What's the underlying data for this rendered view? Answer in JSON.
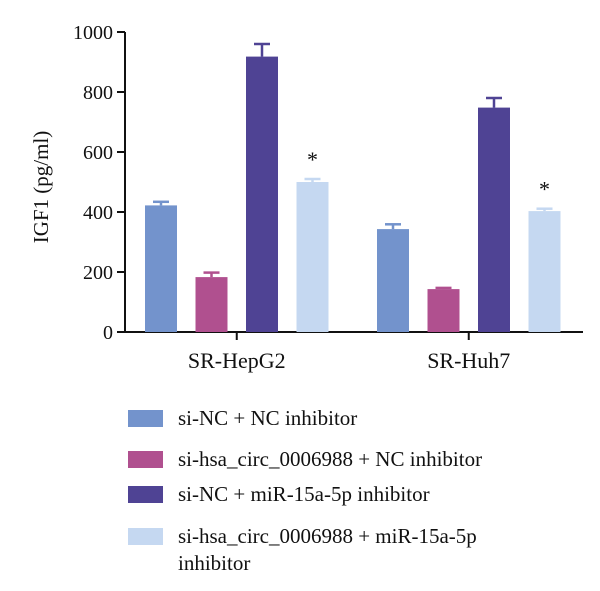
{
  "chart_data": {
    "type": "bar",
    "ylabel": "IGF1 (pg/ml)",
    "ylim": [
      0,
      1000
    ],
    "yticks": [
      0,
      200,
      400,
      600,
      800,
      1000
    ],
    "categories": [
      "SR-HepG2",
      "SR-Huh7"
    ],
    "series": [
      {
        "name": "si-NC + NC inhibitor",
        "color": "#7393cc",
        "values": [
          422,
          343
        ],
        "errors": [
          12,
          16
        ]
      },
      {
        "name": "si-hsa_circ_0006988 + NC inhibitor",
        "color": "#b0508f",
        "values": [
          183,
          143
        ],
        "errors": [
          15,
          4
        ]
      },
      {
        "name": "si-NC + miR-15a-5p inhibitor",
        "color": "#4f4394",
        "values": [
          918,
          748
        ],
        "errors": [
          42,
          32
        ]
      },
      {
        "name": "si-hsa_circ_0006988 + miR-15a-5p inhibitor",
        "color": "#c5d8f1",
        "values": [
          500,
          403
        ],
        "errors": [
          10,
          8
        ]
      }
    ],
    "annotations": [
      {
        "category": 0,
        "series": 3,
        "text": "*"
      },
      {
        "category": 1,
        "series": 3,
        "text": "*"
      }
    ],
    "grid": false,
    "legend": "bottom"
  }
}
